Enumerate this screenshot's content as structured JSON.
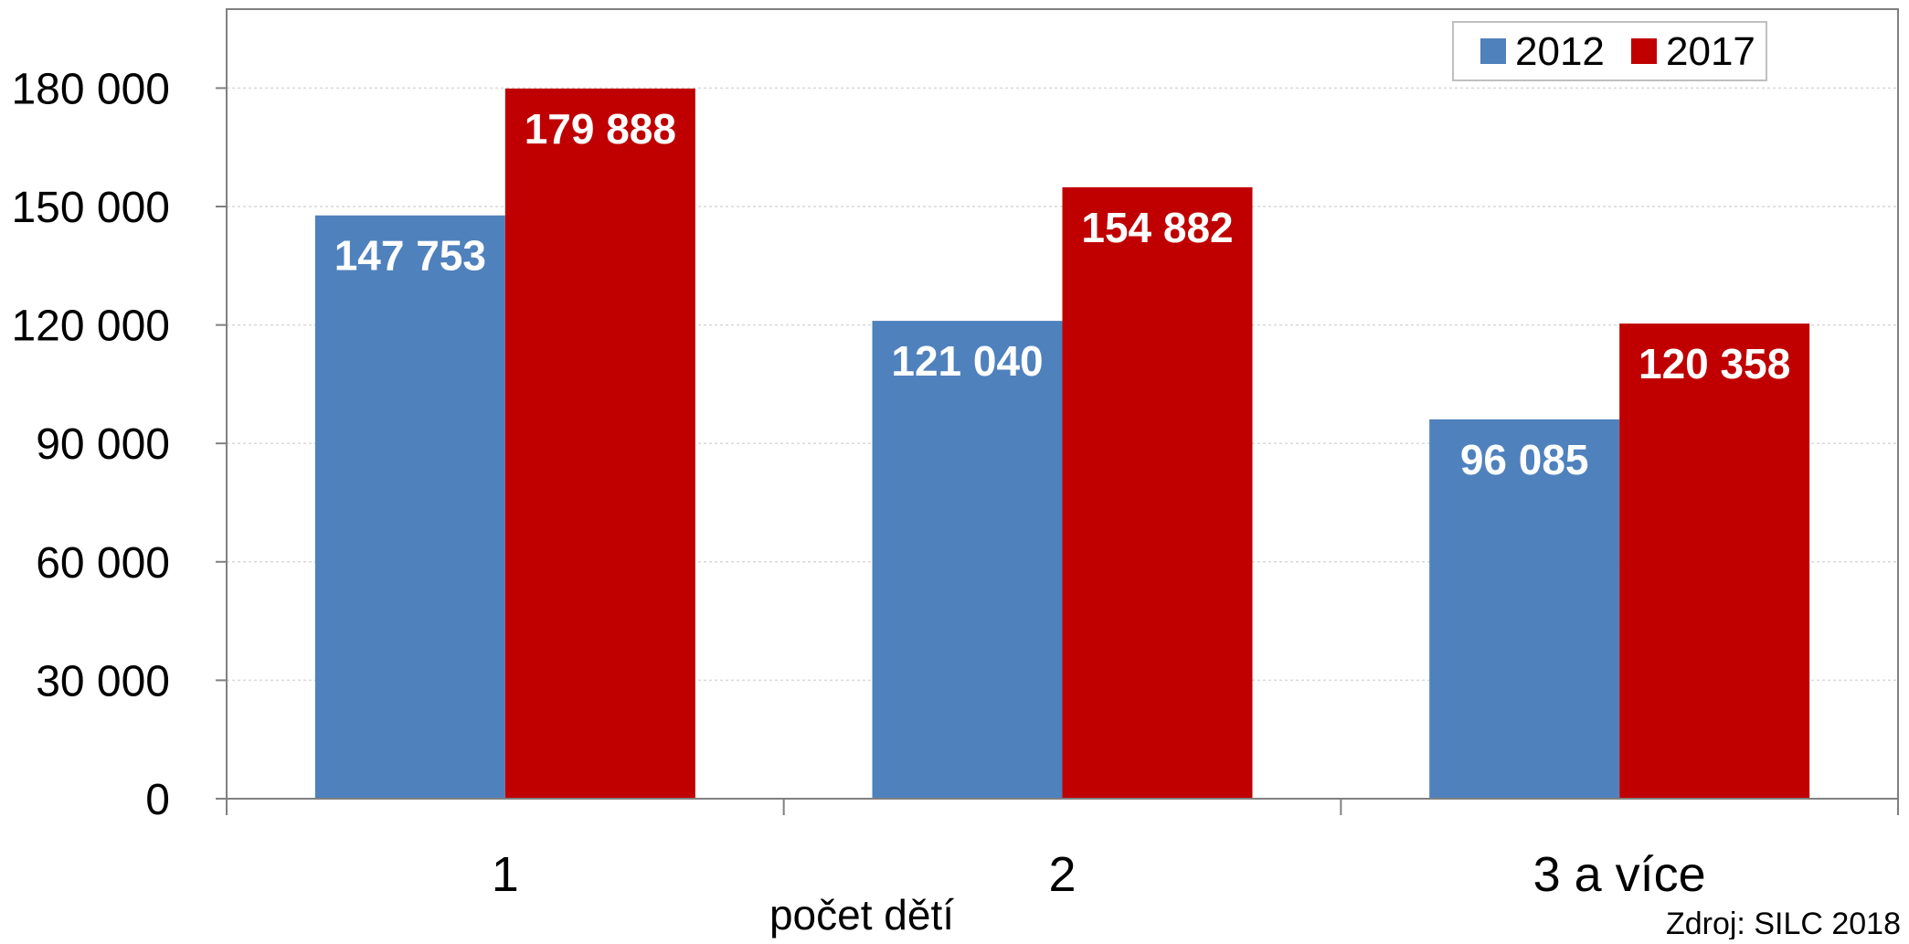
{
  "chart_data": {
    "type": "bar",
    "categories": [
      "1",
      "2",
      "3 a více"
    ],
    "series": [
      {
        "name": "2012",
        "color": "#4F81BD",
        "values": [
          147753,
          121040,
          96085
        ],
        "labels": [
          "147 753",
          "121 040",
          "96 085"
        ]
      },
      {
        "name": "2017",
        "color": "#C00000",
        "values": [
          179888,
          154882,
          120358
        ],
        "labels": [
          "179 888",
          "154 882",
          "120 358"
        ]
      }
    ],
    "xlabel": "počet dětí",
    "ylabel": "",
    "ylim": [
      0,
      200000
    ],
    "yticks": [
      0,
      30000,
      60000,
      90000,
      120000,
      150000,
      180000
    ],
    "ytick_labels": [
      "0",
      "30 000",
      "60 000",
      "90 000",
      "120 000",
      "150 000",
      "180 000"
    ],
    "grid": true,
    "legend_position": "top-right",
    "source": "Zdroj: SILC 2018"
  }
}
